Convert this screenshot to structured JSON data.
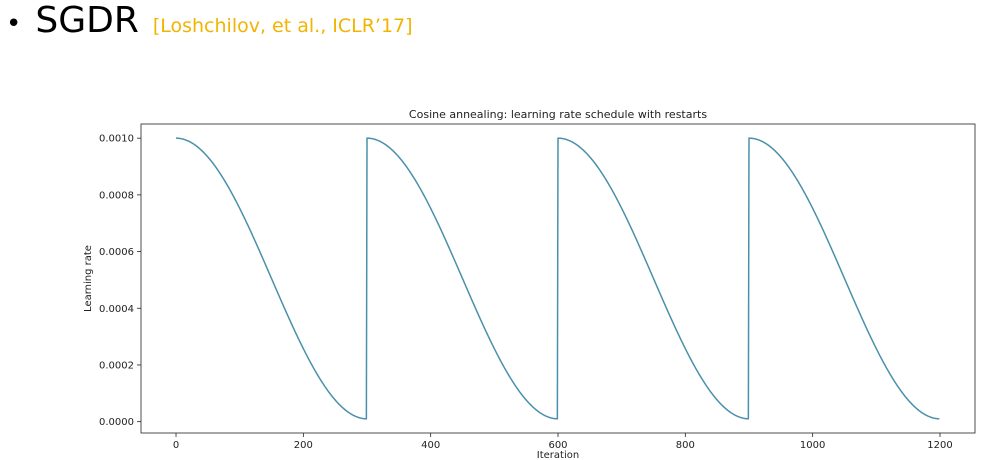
{
  "slide": {
    "bullet": "•",
    "title": "SGDR",
    "citation": "[Loshchilov, et al., ICLR’17]"
  },
  "chart_data": {
    "type": "line",
    "title": "Cosine annealing: learning rate schedule with restarts",
    "xlabel": "Iteration",
    "ylabel": "Learning rate",
    "xlim": [
      -55,
      1255
    ],
    "ylim": [
      -4e-05,
      0.00105
    ],
    "xticks": [
      0,
      200,
      400,
      600,
      800,
      1000,
      1200
    ],
    "xtick_labels": [
      "0",
      "200",
      "400",
      "600",
      "800",
      "1000",
      "1200"
    ],
    "yticks": [
      0.0,
      0.0002,
      0.0004,
      0.0006,
      0.0008,
      0.001
    ],
    "ytick_labels": [
      "0.0000",
      "0.0002",
      "0.0004",
      "0.0006",
      "0.0008",
      "0.0010"
    ],
    "grid": false,
    "series": [
      {
        "color": "#4a90aa",
        "schedule": {
          "kind": "cosine_annealing_with_restarts",
          "lr_max": 0.001,
          "lr_min": 1e-05,
          "cycle_length": 300,
          "restarts_at": [
            300,
            600,
            900
          ],
          "x_end": 1200
        }
      }
    ]
  }
}
